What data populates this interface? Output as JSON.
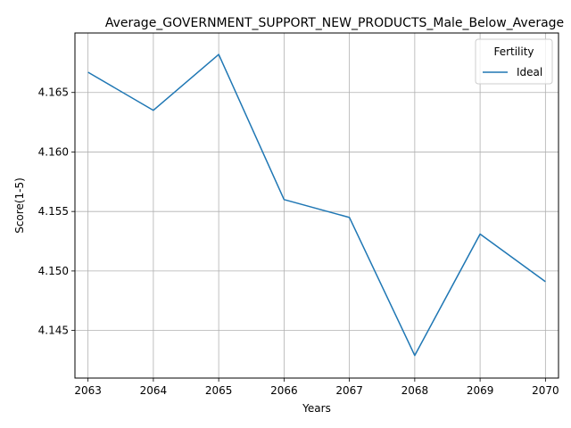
{
  "chart_data": {
    "type": "line",
    "title": "Average_GOVERNMENT_SUPPORT_NEW_PRODUCTS_Male_Below_Average",
    "xlabel": "Years",
    "ylabel": "Score(1-5)",
    "x": [
      2063,
      2064,
      2065,
      2066,
      2067,
      2068,
      2069,
      2070
    ],
    "series": [
      {
        "name": "Ideal",
        "color": "#1f77b4",
        "values": [
          4.1667,
          4.1635,
          4.1682,
          4.156,
          4.1545,
          4.1429,
          4.1531,
          4.1491
        ]
      }
    ],
    "xticks": [
      "2063",
      "2064",
      "2065",
      "2066",
      "2067",
      "2068",
      "2069",
      "2070"
    ],
    "yticks": [
      "4.145",
      "4.150",
      "4.155",
      "4.160",
      "4.165"
    ],
    "ylim": [
      4.141,
      4.17
    ],
    "grid": true,
    "legend": {
      "title": "Fertility",
      "placement": "top-right"
    }
  }
}
